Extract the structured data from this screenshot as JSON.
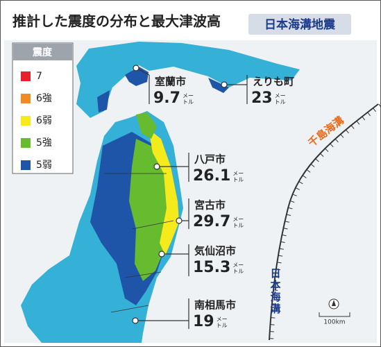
{
  "header": {
    "title": "推計した震度の分布と最大津波高",
    "badge": "日本海溝地震"
  },
  "legend": {
    "title": "震度",
    "items": [
      {
        "label": "7",
        "color": "#e8202a"
      },
      {
        "label": "6強",
        "color": "#f08a24"
      },
      {
        "label": "6弱",
        "color": "#f5ea1c"
      },
      {
        "label": "5強",
        "color": "#66bb2e"
      },
      {
        "label": "5弱",
        "color": "#1f55a8"
      }
    ]
  },
  "unit_lines": [
    "メー",
    "トル"
  ],
  "cities": [
    {
      "name": "室蘭市",
      "height": 9.7
    },
    {
      "name": "えりも町",
      "height": 23
    },
    {
      "name": "八戸市",
      "height": 26.1
    },
    {
      "name": "宮古市",
      "height": 29.7
    },
    {
      "name": "気仙沼市",
      "height": 15.3
    },
    {
      "name": "南相馬市",
      "height": 19
    }
  ],
  "trenches": {
    "kuril": "千島海溝",
    "japan": "日本海溝"
  },
  "scale": "100km"
}
